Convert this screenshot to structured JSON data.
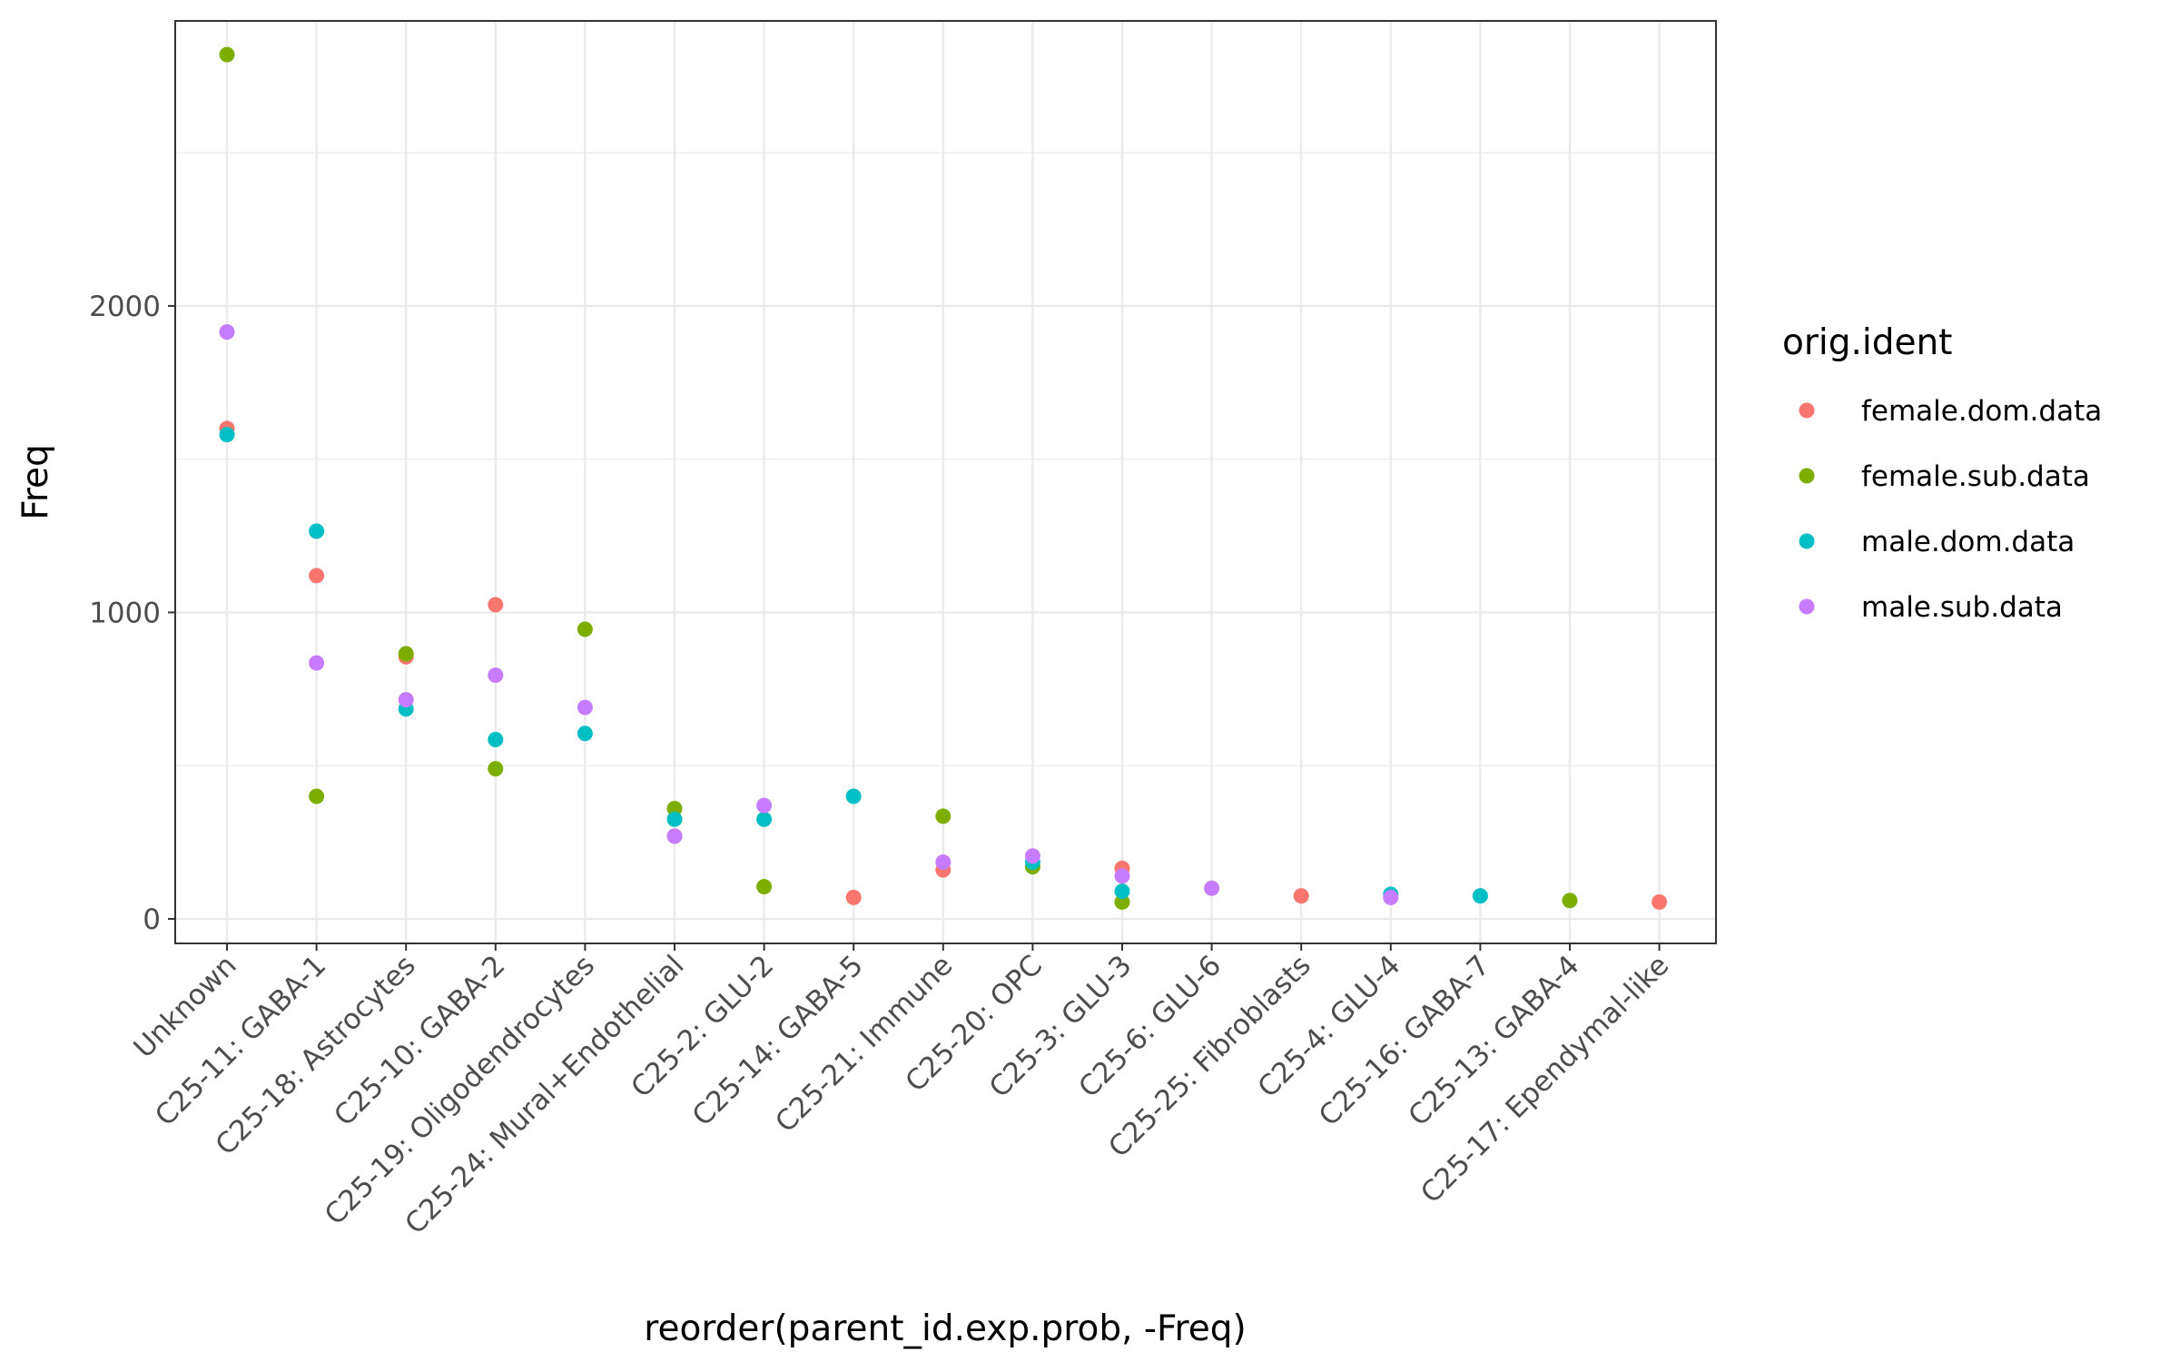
{
  "chart_data": {
    "type": "scatter",
    "title": "",
    "xlabel": "reorder(parent_id.exp.prob, -Freq)",
    "ylabel": "Freq",
    "ylim": [
      -80,
      2930
    ],
    "yticks": [
      0,
      1000,
      2000
    ],
    "grid": true,
    "legend": {
      "title": "orig.ident",
      "placement": "right"
    },
    "categories": [
      "Unknown",
      "C25-11: GABA-1",
      "C25-18: Astrocytes",
      "C25-10: GABA-2",
      "C25-19: Oligodendrocytes",
      "C25-24: Mural+Endothelial",
      "C25-2: GLU-2",
      "C25-14: GABA-5",
      "C25-21: Immune",
      "C25-20: OPC",
      "C25-3: GLU-3",
      "C25-6: GLU-6",
      "C25-25: Fibroblasts",
      "C25-4: GLU-4",
      "C25-16: GABA-7",
      "C25-13: GABA-4",
      "C25-17: Ependymal-like"
    ],
    "series": [
      {
        "name": "female.dom.data",
        "color": "#F8766D",
        "values": [
          1600,
          1120,
          855,
          1025,
          null,
          270,
          null,
          70,
          160,
          null,
          165,
          null,
          75,
          null,
          null,
          null,
          55
        ]
      },
      {
        "name": "female.sub.data",
        "color": "#7CAE00",
        "values": [
          2820,
          400,
          865,
          490,
          945,
          360,
          105,
          null,
          335,
          170,
          55,
          null,
          null,
          null,
          null,
          60,
          null
        ]
      },
      {
        "name": "male.dom.data",
        "color": "#00BFC4",
        "values": [
          1580,
          1265,
          685,
          585,
          605,
          325,
          325,
          400,
          null,
          185,
          90,
          null,
          null,
          80,
          75,
          null,
          null
        ]
      },
      {
        "name": "male.sub.data",
        "color": "#C77CFF",
        "values": [
          1915,
          835,
          715,
          795,
          690,
          270,
          370,
          null,
          185,
          205,
          140,
          100,
          null,
          70,
          null,
          null,
          null
        ]
      }
    ]
  }
}
